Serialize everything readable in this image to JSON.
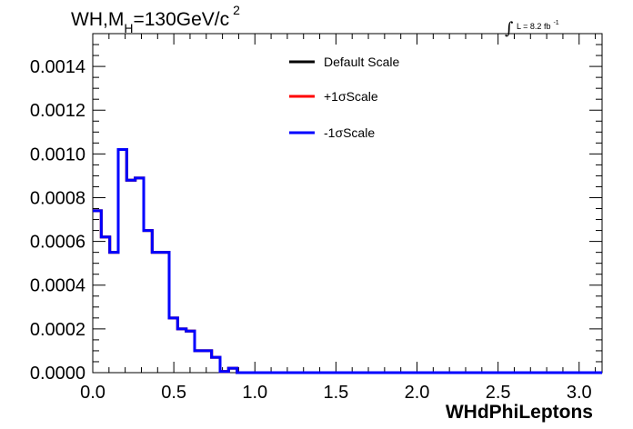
{
  "chart_data": {
    "type": "line",
    "plot_style": "step-histogram",
    "title": {
      "prefix": "WH,M",
      "sub": "H",
      "value": "=130GeV/c",
      "sup": "2"
    },
    "luminosity": {
      "integral": "∫",
      "text": "L = 8.2 fb",
      "sup": "-1"
    },
    "xlabel": "WHdPhiLeptons",
    "ylabel": "",
    "xlim": [
      0.0,
      3.1416
    ],
    "ylim": [
      0.0,
      0.00155
    ],
    "x_ticks": [
      "0.0",
      "0.5",
      "1.0",
      "1.5",
      "2.0",
      "2.5",
      "3.0"
    ],
    "x_tick_values": [
      0.0,
      0.5,
      1.0,
      1.5,
      2.0,
      2.5,
      3.0
    ],
    "y_ticks": [
      "0.0000",
      "0.0002",
      "0.0004",
      "0.0006",
      "0.0008",
      "0.0010",
      "0.0012",
      "0.0014"
    ],
    "y_tick_values": [
      0.0,
      0.0002,
      0.0004,
      0.0006,
      0.0008,
      0.001,
      0.0012,
      0.0014
    ],
    "bin_edges": [
      0.0,
      0.0524,
      0.1047,
      0.1571,
      0.2094,
      0.2618,
      0.3142,
      0.3665,
      0.4189,
      0.4712,
      0.5236,
      0.576,
      0.6283,
      0.6807,
      0.733,
      0.7854,
      0.8378,
      0.8901,
      0.9425,
      0.9948,
      1.0472,
      1.0996,
      3.1416
    ],
    "series": [
      {
        "name": "Default Scale",
        "color": "#000000",
        "values": [
          0.00074,
          0.00062,
          0.00055,
          0.00102,
          0.00088,
          0.00089,
          0.00065,
          0.00055,
          0.00055,
          0.00025,
          0.0002,
          0.00019,
          0.0001,
          0.0001,
          7e-05,
          5e-06,
          2e-05,
          0.0,
          0.0,
          0.0,
          0.0,
          0.0
        ]
      },
      {
        "name": "+1σScale",
        "color": "#ff0000",
        "values": [
          0.00074,
          0.00062,
          0.00055,
          0.00102,
          0.00088,
          0.00089,
          0.00065,
          0.00055,
          0.00055,
          0.00025,
          0.0002,
          0.00019,
          0.0001,
          0.0001,
          7e-05,
          5e-06,
          2e-05,
          0.0,
          0.0,
          0.0,
          0.0,
          0.0
        ]
      },
      {
        "name": "-1σScale",
        "color": "#0000ff",
        "values": [
          0.00074,
          0.00062,
          0.00055,
          0.00102,
          0.00088,
          0.00089,
          0.00065,
          0.00055,
          0.00055,
          0.00025,
          0.0002,
          0.00019,
          0.0001,
          0.0001,
          7e-05,
          5e-06,
          2e-05,
          0.0,
          0.0,
          0.0,
          0.0,
          0.0
        ]
      }
    ],
    "legend_position": "top-center",
    "grid": false
  }
}
